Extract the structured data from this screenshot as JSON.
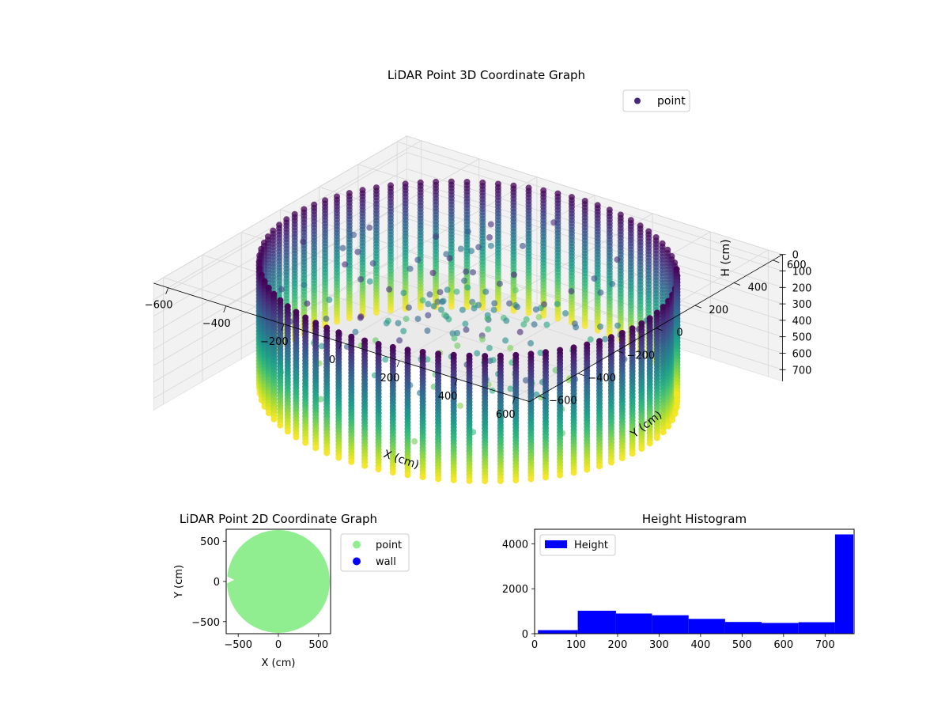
{
  "chart_data": [
    {
      "type": "scatter",
      "projection": "3d",
      "title": "LiDAR Point 3D Coordinate Graph",
      "xlabel": "X (cm)",
      "ylabel": "Y (cm)",
      "zlabel": "H (cm)",
      "xlim": [
        -650,
        650
      ],
      "ylim": [
        -650,
        650
      ],
      "zlim": [
        770,
        0
      ],
      "z_axis_inverted": true,
      "xticks": [
        -600,
        -400,
        -200,
        0,
        200,
        400,
        600
      ],
      "yticks": [
        -600,
        -400,
        -200,
        0,
        200,
        400,
        600
      ],
      "zticks": [
        0,
        100,
        200,
        300,
        400,
        500,
        600,
        700
      ],
      "colormap": "viridis (color by height)",
      "legend": [
        "point"
      ],
      "legend_position": "top-right",
      "grid": true,
      "series": [
        {
          "name": "point",
          "shape": "cylindrical wall",
          "radius_cm": 600,
          "height_range_cm": [
            0,
            770
          ],
          "color": "#482878"
        }
      ]
    },
    {
      "type": "scatter",
      "title": "LiDAR Point 2D Coordinate Graph",
      "xlabel": "X (cm)",
      "ylabel": "Y (cm)",
      "xlim": [
        -650,
        650
      ],
      "ylim": [
        -650,
        650
      ],
      "xticks": [
        -500,
        0,
        500
      ],
      "yticks": [
        -500,
        0,
        500
      ],
      "legend_position": "outside right",
      "series": [
        {
          "name": "point",
          "color": "#90ee90",
          "shape": "filled disc",
          "radius_cm": 640
        },
        {
          "name": "wall",
          "color": "#0000ff"
        }
      ]
    },
    {
      "type": "bar",
      "subtype": "histogram",
      "title": "Height Histogram",
      "xlim": [
        0,
        770
      ],
      "ylim": [
        0,
        4650
      ],
      "xticks": [
        0,
        100,
        200,
        300,
        400,
        500,
        600,
        700
      ],
      "yticks": [
        0,
        2000,
        4000
      ],
      "legend": [
        "Height"
      ],
      "legend_position": "top-left",
      "color": "#0000ff",
      "bin_edges": [
        8,
        104,
        196,
        283,
        371,
        459,
        547,
        636,
        724,
        768
      ],
      "values": [
        160,
        1020,
        900,
        820,
        660,
        520,
        480,
        510,
        4420
      ]
    }
  ]
}
